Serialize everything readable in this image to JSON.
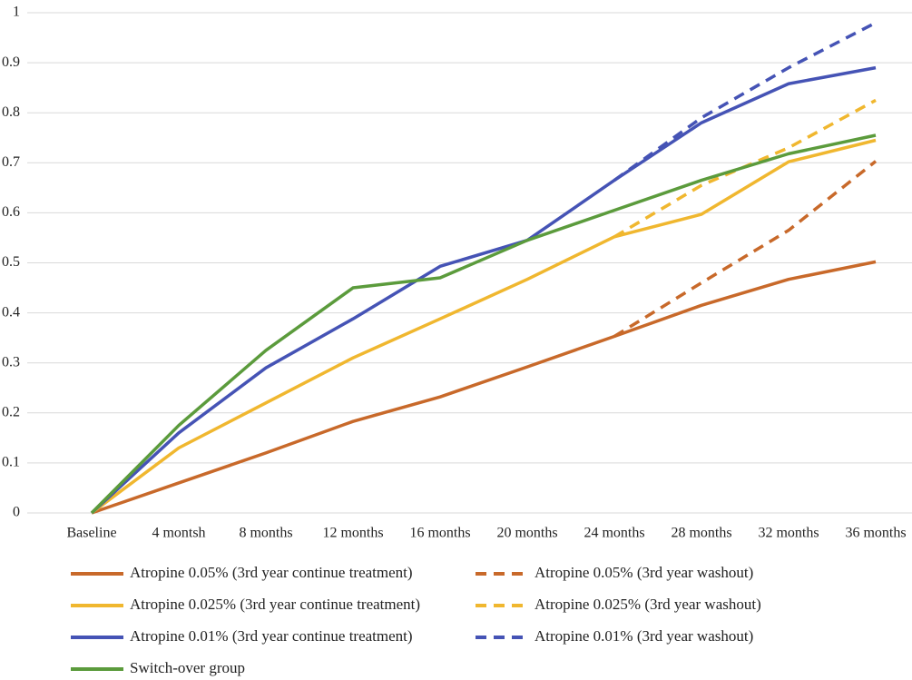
{
  "chart_data": {
    "type": "line",
    "categories": [
      "Baseline",
      "4 montsh",
      "8 months",
      "12 months",
      "16 months",
      "20 months",
      "24 months",
      "28 months",
      "32 months",
      "36 months"
    ],
    "series": [
      {
        "name": "Atropine 0.05% (3rd year continue treatment)",
        "color": "#c8692a",
        "dashed": false,
        "values": [
          0,
          0.06,
          0.12,
          0.183,
          0.232,
          0.292,
          0.353,
          0.415,
          0.467,
          0.502
        ]
      },
      {
        "name": "Atropine 0.05% (3rd year washout)",
        "color": "#c8692a",
        "dashed": true,
        "values": [
          null,
          null,
          null,
          null,
          null,
          null,
          0.353,
          0.46,
          0.565,
          0.703
        ]
      },
      {
        "name": "Atropine 0.025% (3rd year continue treatment)",
        "color": "#f0b72f",
        "dashed": false,
        "values": [
          0,
          0.13,
          0.22,
          0.31,
          0.388,
          0.467,
          0.552,
          0.597,
          0.702,
          0.745
        ]
      },
      {
        "name": "Atropine 0.025% (3rd year washout)",
        "color": "#f0b72f",
        "dashed": true,
        "values": [
          null,
          null,
          null,
          null,
          null,
          null,
          0.552,
          0.655,
          0.73,
          0.825
        ]
      },
      {
        "name": "Atropine 0.01% (3rd year continue treatment)",
        "color": "#4553b5",
        "dashed": false,
        "values": [
          0,
          0.16,
          0.29,
          0.388,
          0.493,
          0.545,
          0.665,
          0.78,
          0.858,
          0.89
        ]
      },
      {
        "name": "Atropine 0.01% (3rd year washout)",
        "color": "#4553b5",
        "dashed": true,
        "values": [
          null,
          null,
          null,
          null,
          null,
          null,
          0.665,
          0.79,
          0.89,
          0.98
        ]
      },
      {
        "name": "Switch-over group",
        "color": "#5b9b3c",
        "dashed": false,
        "values": [
          0,
          0.175,
          0.325,
          0.45,
          0.47,
          0.545,
          0.605,
          0.665,
          0.718,
          0.755
        ]
      }
    ],
    "ylim": [
      0,
      1
    ],
    "yticks": [
      0,
      0.1,
      0.2,
      0.3,
      0.4,
      0.5,
      0.6,
      0.7,
      0.8,
      0.9,
      1
    ],
    "grid": true
  }
}
